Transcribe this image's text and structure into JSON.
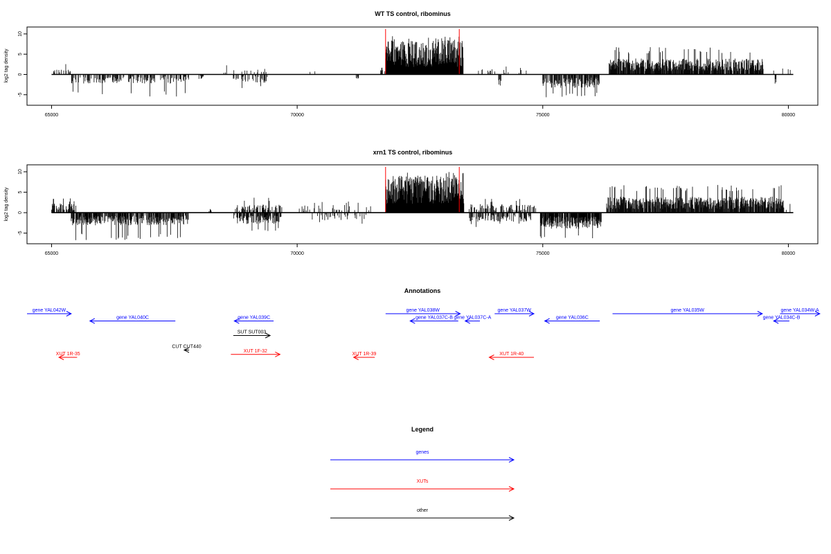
{
  "chart_data": [
    {
      "type": "bar",
      "title": "WT TS control, ribominus",
      "ylabel": "log2 tag density",
      "xlabel": "",
      "xlim": [
        64500,
        80600
      ],
      "ylim": [
        -7.6,
        11.7
      ],
      "yticks": [
        10,
        5,
        0,
        -5
      ],
      "ytick_labels": [
        "10",
        "5",
        "0",
        "-5"
      ],
      "xticks": [
        65000,
        70000,
        75000,
        80000
      ],
      "xtick_labels": [
        "65000",
        "70000",
        "75000",
        "80000"
      ],
      "baseline_range": [
        65000,
        80100
      ],
      "red_markers": [
        71800,
        73300
      ],
      "regions": [
        {
          "strand": "+",
          "from": 65000,
          "to": 65400,
          "density": 0.25,
          "mean": 1.2,
          "max": 3.0
        },
        {
          "strand": "-",
          "from": 65400,
          "to": 67800,
          "density": 0.35,
          "mean": 1.6,
          "max": 5.5
        },
        {
          "strand": "-",
          "from": 68000,
          "to": 68100,
          "density": 0.5,
          "mean": 0.8,
          "max": 2.0
        },
        {
          "strand": "+",
          "from": 68450,
          "to": 69450,
          "density": 0.12,
          "mean": 1.0,
          "max": 2.8
        },
        {
          "strand": "-",
          "from": 68700,
          "to": 69400,
          "density": 0.3,
          "mean": 1.5,
          "max": 3.5
        },
        {
          "strand": "+",
          "from": 70100,
          "to": 70700,
          "density": 0.06,
          "mean": 0.8,
          "max": 2.0
        },
        {
          "strand": "-",
          "from": 71200,
          "to": 71250,
          "density": 0.6,
          "mean": 0.8,
          "max": 1.0
        },
        {
          "strand": "+",
          "from": 71700,
          "to": 71800,
          "density": 0.6,
          "mean": 1.2,
          "max": 1.8
        },
        {
          "strand": "+",
          "from": 71800,
          "to": 73380,
          "density": 1.0,
          "mean": 6.0,
          "max": 9.8
        },
        {
          "strand": "+",
          "from": 73500,
          "to": 74700,
          "density": 0.08,
          "mean": 1.2,
          "max": 2.5
        },
        {
          "strand": "-",
          "from": 74100,
          "to": 74150,
          "density": 0.6,
          "mean": 2.2,
          "max": 3.0
        },
        {
          "strand": "-",
          "from": 75000,
          "to": 76150,
          "density": 0.6,
          "mean": 2.4,
          "max": 5.8
        },
        {
          "strand": "+",
          "from": 76350,
          "to": 79500,
          "density": 0.85,
          "mean": 2.8,
          "max": 6.8
        },
        {
          "strand": "-",
          "from": 79700,
          "to": 79750,
          "density": 0.6,
          "mean": 1.8,
          "max": 2.5
        },
        {
          "strand": "+",
          "from": 79700,
          "to": 80050,
          "density": 0.08,
          "mean": 1.2,
          "max": 2.5
        }
      ]
    },
    {
      "type": "bar",
      "title": "xrn1 TS control, ribominus",
      "ylabel": "log2 tag density",
      "xlabel": "",
      "xlim": [
        64500,
        80600
      ],
      "ylim": [
        -7.6,
        11.7
      ],
      "yticks": [
        10,
        5,
        0,
        -5
      ],
      "ytick_labels": [
        "10",
        "5",
        "0",
        "-5"
      ],
      "xticks": [
        65000,
        70000,
        75000,
        80000
      ],
      "xtick_labels": [
        "65000",
        "70000",
        "75000",
        "80000"
      ],
      "baseline_range": [
        65000,
        80100
      ],
      "red_markers": [
        71800,
        73300
      ],
      "regions": [
        {
          "strand": "+",
          "from": 65000,
          "to": 65500,
          "density": 0.6,
          "mean": 1.6,
          "max": 3.5
        },
        {
          "strand": "-",
          "from": 65400,
          "to": 67800,
          "density": 0.7,
          "mean": 2.2,
          "max": 6.8
        },
        {
          "strand": "+",
          "from": 68200,
          "to": 68250,
          "density": 0.6,
          "mean": 0.8,
          "max": 1.0
        },
        {
          "strand": "+",
          "from": 68700,
          "to": 69700,
          "density": 0.35,
          "mean": 1.4,
          "max": 3.8
        },
        {
          "strand": "-",
          "from": 68700,
          "to": 69700,
          "density": 0.6,
          "mean": 2.0,
          "max": 4.5
        },
        {
          "strand": "+",
          "from": 70000,
          "to": 71500,
          "density": 0.15,
          "mean": 1.4,
          "max": 3.0
        },
        {
          "strand": "-",
          "from": 70300,
          "to": 71400,
          "density": 0.2,
          "mean": 1.4,
          "max": 3.0
        },
        {
          "strand": "+",
          "from": 71800,
          "to": 73400,
          "density": 1.0,
          "mean": 6.5,
          "max": 10.0
        },
        {
          "strand": "+",
          "from": 73500,
          "to": 74900,
          "density": 0.4,
          "mean": 1.5,
          "max": 3.5
        },
        {
          "strand": "-",
          "from": 73500,
          "to": 74800,
          "density": 0.45,
          "mean": 1.6,
          "max": 3.5
        },
        {
          "strand": "-",
          "from": 74950,
          "to": 76200,
          "density": 0.85,
          "mean": 2.8,
          "max": 6.5
        },
        {
          "strand": "+",
          "from": 76300,
          "to": 79900,
          "density": 0.85,
          "mean": 2.8,
          "max": 6.8
        },
        {
          "strand": "+",
          "from": 79900,
          "to": 80050,
          "density": 0.3,
          "mean": 1.2,
          "max": 2.2
        }
      ]
    }
  ],
  "annotations": {
    "title": "Annotations",
    "xlim": [
      64500,
      80600
    ],
    "colors": {
      "gene": "#0000ff",
      "xut": "#ff0000",
      "other": "#000000"
    },
    "features": [
      {
        "label": "gene YAL042W",
        "strand": "+",
        "start": 64300,
        "end": 65400,
        "row": 0,
        "kind": "gene"
      },
      {
        "label": "gene YAL040C",
        "strand": "-",
        "start": 65780,
        "end": 67520,
        "row": 1,
        "kind": "gene"
      },
      {
        "label": "gene YAL039C",
        "strand": "-",
        "start": 68720,
        "end": 69520,
        "row": 1,
        "kind": "gene"
      },
      {
        "label": "SUT SUT003",
        "strand": "+",
        "start": 68700,
        "end": 69450,
        "row": 3,
        "kind": "other"
      },
      {
        "label": "CUT CUT440",
        "strand": "-",
        "start": 67700,
        "end": 67800,
        "row": 5,
        "kind": "other"
      },
      {
        "label": "XUT 1R-35",
        "strand": "-",
        "start": 65150,
        "end": 65520,
        "row": 6,
        "kind": "xut"
      },
      {
        "label": "XUT 1F-32",
        "strand": "+",
        "start": 68650,
        "end": 69650,
        "row": 5.6,
        "kind": "xut"
      },
      {
        "label": "XUT 1R-39",
        "strand": "-",
        "start": 71150,
        "end": 71580,
        "row": 6,
        "kind": "xut"
      },
      {
        "label": "XUT 1R-40",
        "strand": "-",
        "start": 73910,
        "end": 74820,
        "row": 6,
        "kind": "xut"
      },
      {
        "label": "gene YAL038W",
        "strand": "+",
        "start": 71800,
        "end": 73320,
        "row": 0,
        "kind": "gene"
      },
      {
        "label": "gene YAL037C-B",
        "strand": "-",
        "start": 72300,
        "end": 73280,
        "row": 1,
        "kind": "gene"
      },
      {
        "label": "gene YAL037C-A",
        "strand": "-",
        "start": 73420,
        "end": 73720,
        "row": 1,
        "kind": "gene"
      },
      {
        "label": "gene YAL037W",
        "strand": "+",
        "start": 74020,
        "end": 74820,
        "row": 0,
        "kind": "gene"
      },
      {
        "label": "gene YAL036C",
        "strand": "-",
        "start": 75040,
        "end": 76160,
        "row": 1,
        "kind": "gene"
      },
      {
        "label": "gene YAL035W",
        "strand": "+",
        "start": 76420,
        "end": 79470,
        "row": 0,
        "kind": "gene"
      },
      {
        "label": "gene YAL034C-B",
        "strand": "-",
        "start": 79700,
        "end": 80020,
        "row": 1,
        "kind": "gene"
      },
      {
        "label": "gene YAL034W-A",
        "strand": "+",
        "start": 79830,
        "end": 80640,
        "row": 0,
        "kind": "gene"
      }
    ]
  },
  "legend": {
    "title": "Legend",
    "items": [
      {
        "label": "genes",
        "color": "#0000ff"
      },
      {
        "label": "XUTs",
        "color": "#ff0000"
      },
      {
        "label": "other",
        "color": "#000000"
      }
    ]
  }
}
